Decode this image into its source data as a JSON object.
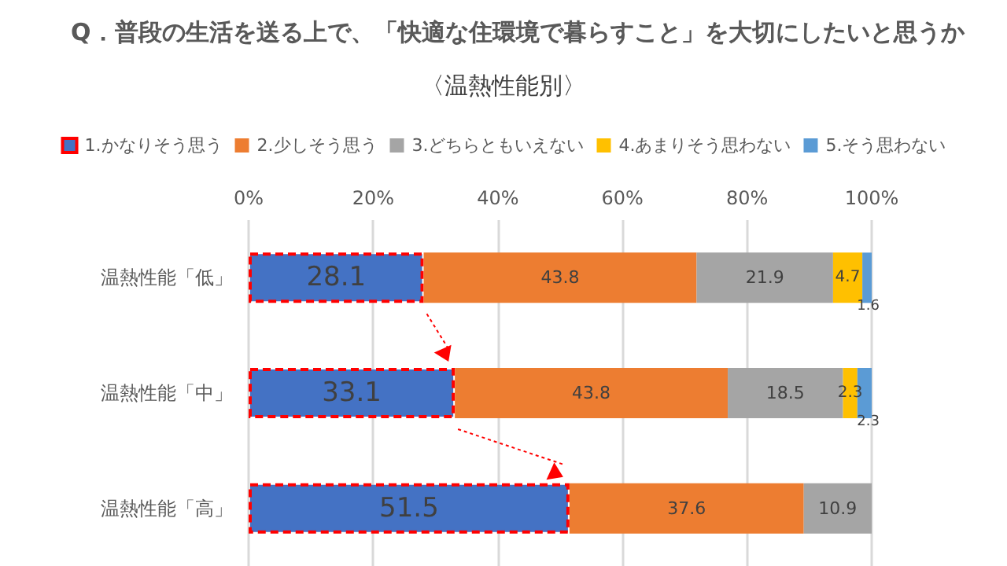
{
  "chart_data": {
    "type": "bar",
    "orientation": "horizontal",
    "stacked": true,
    "title": "Q．普段の生活を送る上で、「快適な住環境で暮らすこと」を大切にしたいと思うか",
    "subtitle": "〈温熱性能別〉",
    "categories": [
      "温熱性能「低」",
      "温熱性能「中」",
      "温熱性能「高」"
    ],
    "series": [
      {
        "name": "1.かなりそう思う",
        "color": "#4472c4",
        "values": [
          28.1,
          33.1,
          51.5
        ]
      },
      {
        "name": "2.少しそう思う",
        "color": "#ed7d31",
        "values": [
          43.8,
          43.8,
          37.6
        ]
      },
      {
        "name": "3.どちらともいえない",
        "color": "#a5a5a5",
        "values": [
          21.9,
          18.5,
          10.9
        ]
      },
      {
        "name": "4.あまりそう思わない",
        "color": "#ffc000",
        "values": [
          4.7,
          2.3,
          null
        ]
      },
      {
        "name": "5.そう思わない",
        "color": "#5b9bd5",
        "values": [
          1.6,
          2.3,
          null
        ]
      }
    ],
    "xlim": [
      0,
      100
    ],
    "xticks": [
      {
        "value": 0,
        "label": "0%"
      },
      {
        "value": 20,
        "label": "20%"
      },
      {
        "value": 40,
        "label": "40%"
      },
      {
        "value": 60,
        "label": "60%"
      },
      {
        "value": 80,
        "label": "80%"
      },
      {
        "value": 100,
        "label": "100%"
      }
    ],
    "grid": "x",
    "legend": "top",
    "data_labels": true
  }
}
